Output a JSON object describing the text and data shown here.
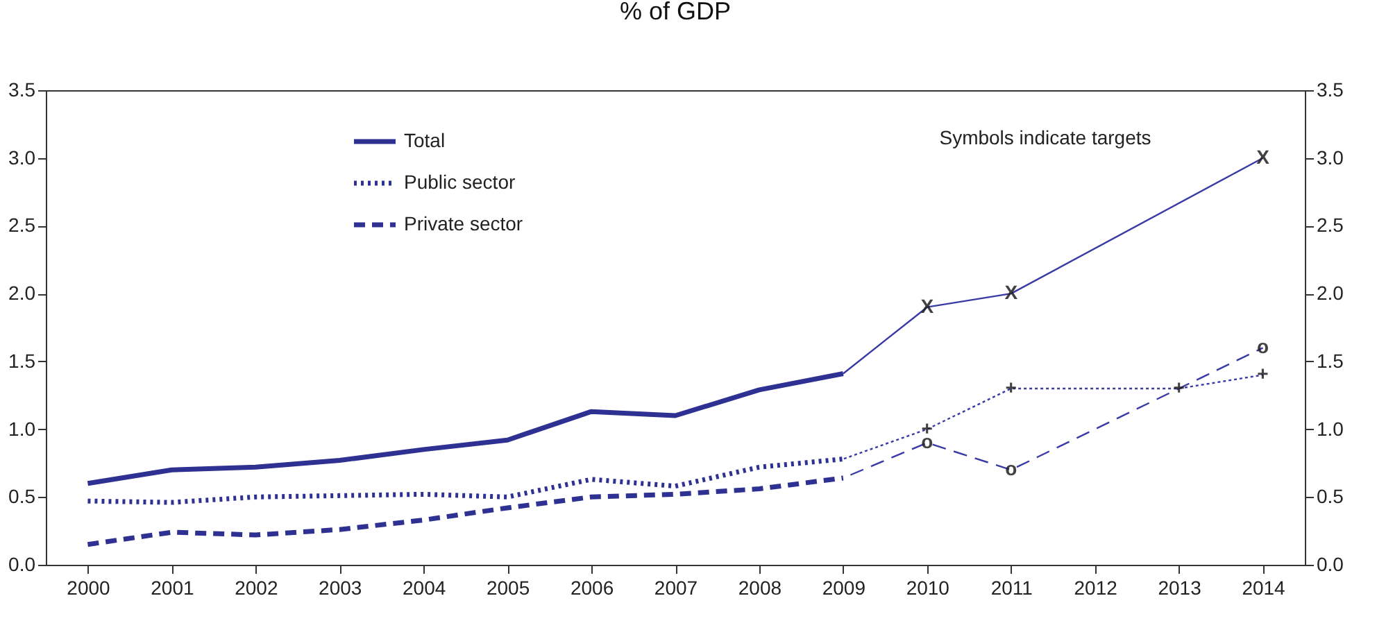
{
  "chart_data": {
    "type": "line",
    "title": "% of GDP",
    "categories": [
      "2000",
      "2001",
      "2002",
      "2003",
      "2004",
      "2005",
      "2006",
      "2007",
      "2008",
      "2009",
      "2010",
      "2011",
      "2012",
      "2013",
      "2014"
    ],
    "series": [
      {
        "name": "Total",
        "color": "#2e3192",
        "line_style": "solid",
        "values": [
          0.6,
          0.7,
          0.72,
          0.77,
          0.85,
          0.92,
          1.13,
          1.1,
          1.29,
          1.41,
          null,
          null,
          null,
          null,
          null
        ]
      },
      {
        "name": "Public sector",
        "color": "#2e3192",
        "line_style": "dotted",
        "values": [
          0.47,
          0.46,
          0.5,
          0.51,
          0.52,
          0.5,
          0.63,
          0.58,
          0.72,
          0.78,
          null,
          null,
          null,
          null,
          null
        ]
      },
      {
        "name": "Private sector",
        "color": "#2e3192",
        "line_style": "dashed",
        "values": [
          0.15,
          0.24,
          0.22,
          0.26,
          0.33,
          0.42,
          0.5,
          0.52,
          0.56,
          0.64,
          null,
          null,
          null,
          null,
          null
        ]
      },
      {
        "color": "#3a3aa6",
        "line_style": "solid",
        "values": [
          null,
          null,
          null,
          null,
          null,
          null,
          null,
          null,
          null,
          1.41,
          1.9,
          2.0,
          null,
          null,
          3.0
        ]
      },
      {
        "color": "#3a3aa6",
        "line_style": "dotted",
        "values": [
          null,
          null,
          null,
          null,
          null,
          null,
          null,
          null,
          null,
          0.78,
          1.0,
          1.3,
          null,
          1.3,
          1.4
        ]
      },
      {
        "color": "#3a3aa6",
        "line_style": "dashed",
        "values": [
          null,
          null,
          null,
          null,
          null,
          null,
          null,
          null,
          null,
          0.64,
          0.9,
          0.7,
          null,
          null,
          1.6
        ]
      }
    ],
    "annotations": [
      "Symbols indicate targets",
      {
        "text": "X",
        "x": "2010",
        "y": 1.9
      },
      {
        "text": "X",
        "x": "2011",
        "y": 2.0
      },
      {
        "text": "X",
        "x": "2014",
        "y": 3.0
      },
      {
        "text": "+",
        "x": "2010",
        "y": 1.0
      },
      {
        "text": "+",
        "x": "2011",
        "y": 1.3
      },
      {
        "text": "+",
        "x": "2013",
        "y": 1.3
      },
      {
        "text": "+",
        "x": "2014",
        "y": 1.4
      },
      {
        "text": "o",
        "x": "2010",
        "y": 0.9
      },
      {
        "text": "o",
        "x": "2011",
        "y": 0.7
      },
      {
        "text": "o",
        "x": "2014",
        "y": 1.6
      }
    ],
    "ylim": [
      0,
      3.5
    ],
    "yticks": [
      {
        "value": 0,
        "label": "0.0"
      },
      0.5,
      {
        "value": 1,
        "label": "1.0"
      },
      1.5,
      {
        "value": 2,
        "label": "2.0"
      },
      2.5,
      {
        "value": 3,
        "label": "3.0"
      },
      3.5
    ],
    "y2lim": [
      0,
      3.5
    ],
    "y2ticks": [
      {
        "value": 0,
        "label": "0.0"
      },
      0.5,
      {
        "value": 1,
        "label": "1.0"
      },
      1.5,
      {
        "value": 2,
        "label": "2.0"
      },
      2.5,
      {
        "value": 3,
        "label": "3.0"
      },
      3.5
    ],
    "legend": "top left",
    "grid": false
  }
}
